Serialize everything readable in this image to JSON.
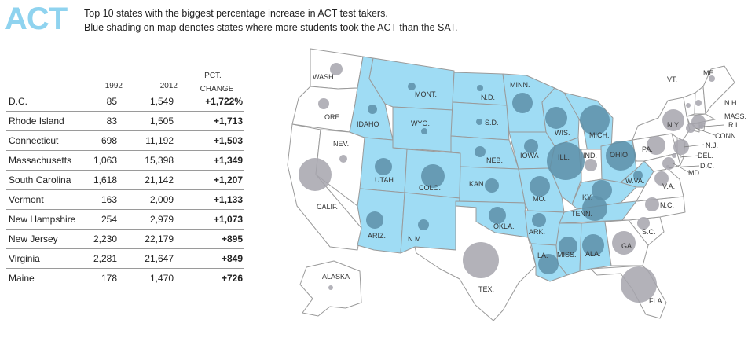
{
  "header": {
    "logo": "ACT",
    "line1": "Top 10 states with the biggest percentage increase in ACT test takers.",
    "line2": "Blue shading on map denotes states where more students took the ACT than the SAT."
  },
  "table": {
    "col_1992": "1992",
    "col_2012": "2012",
    "col_pct_1": "PCT.",
    "col_pct_2": "CHANGE",
    "rows": [
      {
        "state": "D.C.",
        "y1992": "85",
        "y2012": "1,549",
        "pct": "+1,722%"
      },
      {
        "state": "Rhode Island",
        "y1992": "83",
        "y2012": "1,505",
        "pct": "+1,713"
      },
      {
        "state": "Connecticut",
        "y1992": "698",
        "y2012": "11,192",
        "pct": "+1,503"
      },
      {
        "state": "Massachusetts",
        "y1992": "1,063",
        "y2012": "15,398",
        "pct": "+1,349"
      },
      {
        "state": "South Carolina",
        "y1992": "1,618",
        "y2012": "21,142",
        "pct": "+1,207"
      },
      {
        "state": "Vermont",
        "y1992": "163",
        "y2012": "2,009",
        "pct": "+1,133"
      },
      {
        "state": "New Hampshire",
        "y1992": "254",
        "y2012": "2,979",
        "pct": "+1,073"
      },
      {
        "state": "New Jersey",
        "y1992": "2,230",
        "y2012": "22,179",
        "pct": "+895"
      },
      {
        "state": "Virginia",
        "y1992": "2,281",
        "y2012": "21,647",
        "pct": "+849"
      },
      {
        "state": "Maine",
        "y1992": "178",
        "y2012": "1,470",
        "pct": "+726"
      }
    ]
  },
  "map": {
    "colors": {
      "act_majority": "#9fdcf4",
      "sat_majority": "#ffffff",
      "border": "#9a9a9a",
      "circle": "#a6a4ad",
      "circle_on_blue": "#5d8fa8"
    },
    "states": [
      {
        "label": "WASH.",
        "act_majority": false
      },
      {
        "label": "ORE.",
        "act_majority": false
      },
      {
        "label": "CALIF.",
        "act_majority": false
      },
      {
        "label": "NEV.",
        "act_majority": false
      },
      {
        "label": "IDAHO",
        "act_majority": true
      },
      {
        "label": "MONT.",
        "act_majority": true
      },
      {
        "label": "WYO.",
        "act_majority": true
      },
      {
        "label": "UTAH",
        "act_majority": true
      },
      {
        "label": "ARIZ.",
        "act_majority": true
      },
      {
        "label": "COLO.",
        "act_majority": true
      },
      {
        "label": "N.M.",
        "act_majority": true
      },
      {
        "label": "N.D.",
        "act_majority": true
      },
      {
        "label": "S.D.",
        "act_majority": true
      },
      {
        "label": "NEB.",
        "act_majority": true
      },
      {
        "label": "KAN.",
        "act_majority": true
      },
      {
        "label": "OKLA.",
        "act_majority": true
      },
      {
        "label": "TEX.",
        "act_majority": false
      },
      {
        "label": "MINN.",
        "act_majority": true
      },
      {
        "label": "IOWA",
        "act_majority": true
      },
      {
        "label": "MO.",
        "act_majority": true
      },
      {
        "label": "ARK.",
        "act_majority": true
      },
      {
        "label": "LA.",
        "act_majority": true
      },
      {
        "label": "WIS.",
        "act_majority": true
      },
      {
        "label": "ILL.",
        "act_majority": true
      },
      {
        "label": "MICH.",
        "act_majority": true
      },
      {
        "label": "IND.",
        "act_majority": false
      },
      {
        "label": "OHIO",
        "act_majority": true
      },
      {
        "label": "KY.",
        "act_majority": true
      },
      {
        "label": "TENN.",
        "act_majority": true
      },
      {
        "label": "MISS.",
        "act_majority": true
      },
      {
        "label": "ALA.",
        "act_majority": true
      },
      {
        "label": "GA.",
        "act_majority": false
      },
      {
        "label": "FLA.",
        "act_majority": false
      },
      {
        "label": "S.C.",
        "act_majority": false
      },
      {
        "label": "N.C.",
        "act_majority": false
      },
      {
        "label": "V.A.",
        "act_majority": false
      },
      {
        "label": "W.VA.",
        "act_majority": true
      },
      {
        "label": "PA.",
        "act_majority": false
      },
      {
        "label": "N.Y.",
        "act_majority": false
      },
      {
        "label": "VT.",
        "act_majority": false
      },
      {
        "label": "ME.",
        "act_majority": false
      },
      {
        "label": "N.H.",
        "act_majority": false
      },
      {
        "label": "MASS.",
        "act_majority": false
      },
      {
        "label": "R.I.",
        "act_majority": false
      },
      {
        "label": "CONN.",
        "act_majority": false
      },
      {
        "label": "N.J.",
        "act_majority": false
      },
      {
        "label": "DEL.",
        "act_majority": false
      },
      {
        "label": "MD.",
        "act_majority": false
      },
      {
        "label": "D.C.",
        "act_majority": false
      },
      {
        "label": "ALASKA",
        "act_majority": false
      }
    ]
  }
}
